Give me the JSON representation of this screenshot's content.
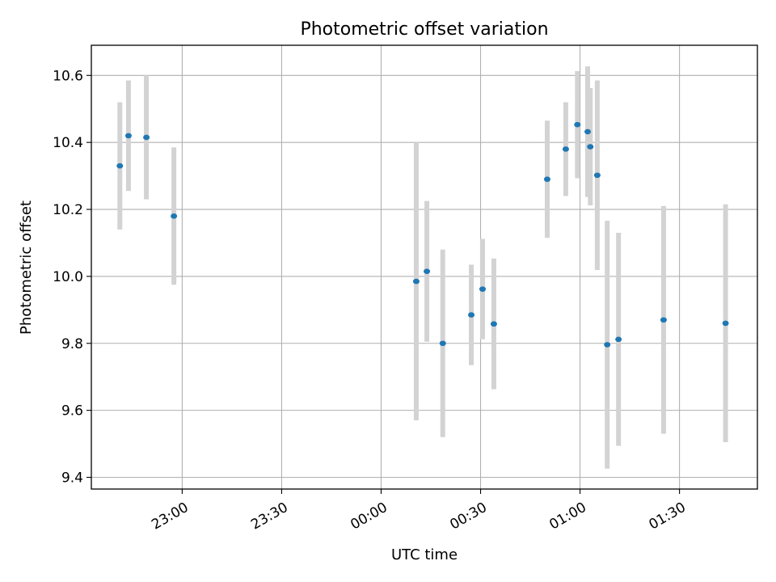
{
  "chart_data": {
    "type": "scatter",
    "title": "Photometric offset variation",
    "xlabel": "UTC time",
    "ylabel": "Photometric offset",
    "x_tick_labels": [
      "23:00",
      "23:30",
      "00:00",
      "00:30",
      "01:00",
      "01:30"
    ],
    "x_tick_minutes": [
      1380,
      1410,
      1440,
      1470,
      1500,
      1530
    ],
    "y_ticks": [
      9.4,
      9.6,
      9.8,
      10.0,
      10.2,
      10.4,
      10.6
    ],
    "y_tick_labels": [
      "9.4",
      "9.6",
      "9.8",
      "10.0",
      "10.2",
      "10.4",
      "10.6"
    ],
    "xlim_minutes": [
      1352.6,
      1553.5
    ],
    "ylim": [
      9.365,
      10.69
    ],
    "grid": true,
    "marker_color": "#1f77b4",
    "errorbar_color": "#d3d3d3",
    "points": [
      {
        "time": "22:41",
        "x_minutes": 1361.2,
        "y": 10.33,
        "yerr": 0.19
      },
      {
        "time": "22:44",
        "x_minutes": 1363.8,
        "y": 10.42,
        "yerr": 0.165
      },
      {
        "time": "22:49",
        "x_minutes": 1369.2,
        "y": 10.415,
        "yerr": 0.185
      },
      {
        "time": "22:57",
        "x_minutes": 1377.5,
        "y": 10.18,
        "yerr": 0.205
      },
      {
        "time": "00:11",
        "x_minutes": 1450.6,
        "y": 9.985,
        "yerr": 0.415
      },
      {
        "time": "00:14",
        "x_minutes": 1453.8,
        "y": 10.015,
        "yerr": 0.21
      },
      {
        "time": "00:19",
        "x_minutes": 1458.6,
        "y": 9.8,
        "yerr": 0.28
      },
      {
        "time": "00:28",
        "x_minutes": 1467.2,
        "y": 9.885,
        "yerr": 0.15
      },
      {
        "time": "00:31",
        "x_minutes": 1470.6,
        "y": 9.962,
        "yerr": 0.15
      },
      {
        "time": "00:34",
        "x_minutes": 1474.0,
        "y": 9.858,
        "yerr": 0.195
      },
      {
        "time": "00:50",
        "x_minutes": 1490.1,
        "y": 10.29,
        "yerr": 0.175
      },
      {
        "time": "00:56",
        "x_minutes": 1495.7,
        "y": 10.38,
        "yerr": 0.14
      },
      {
        "time": "00:59",
        "x_minutes": 1499.2,
        "y": 10.453,
        "yerr": 0.16
      },
      {
        "time": "01:02",
        "x_minutes": 1502.3,
        "y": 10.432,
        "yerr": 0.195
      },
      {
        "time": "01:03",
        "x_minutes": 1503.1,
        "y": 10.387,
        "yerr": 0.175
      },
      {
        "time": "01:05",
        "x_minutes": 1505.2,
        "y": 10.302,
        "yerr": 0.283
      },
      {
        "time": "01:08",
        "x_minutes": 1508.2,
        "y": 9.796,
        "yerr": 0.37
      },
      {
        "time": "01:11",
        "x_minutes": 1511.6,
        "y": 9.812,
        "yerr": 0.318
      },
      {
        "time": "01:25",
        "x_minutes": 1525.2,
        "y": 9.87,
        "yerr": 0.34
      },
      {
        "time": "01:44",
        "x_minutes": 1543.9,
        "y": 9.86,
        "yerr": 0.355
      }
    ]
  }
}
